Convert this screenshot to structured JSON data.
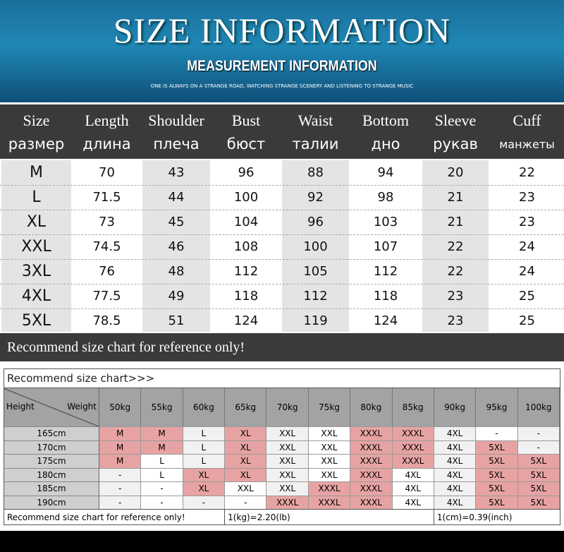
{
  "banner": {
    "title": "SIZE INFORMATION",
    "subtitle": "MEASUREMENT INFORMATION",
    "tagline": "ONE IS ALWAYS ON A STRANGE ROAD, WATCHING STRANGE SCENERY AND LISTENING TO STRANGE MUSIC"
  },
  "size_table": {
    "headers": [
      [
        "Size",
        "размер"
      ],
      [
        "Length",
        "длина"
      ],
      [
        "Shoulder",
        "плеча"
      ],
      [
        "Bust",
        "бюст"
      ],
      [
        "Waist",
        "талии"
      ],
      [
        "Bottom",
        "дно"
      ],
      [
        "Sleeve",
        "рукав"
      ],
      [
        "Cuff",
        "манжеты"
      ]
    ],
    "rows": [
      [
        "M",
        70,
        43,
        96,
        88,
        94,
        20,
        22
      ],
      [
        "L",
        71.5,
        44,
        100,
        92,
        98,
        21,
        23
      ],
      [
        "XL",
        73,
        45,
        104,
        96,
        103,
        21,
        23
      ],
      [
        "XXL",
        74.5,
        46,
        108,
        100,
        107,
        22,
        24
      ],
      [
        "3XL",
        76,
        48,
        112,
        105,
        112,
        22,
        24
      ],
      [
        "4XL",
        77.5,
        49,
        118,
        112,
        118,
        23,
        25
      ],
      [
        "5XL",
        78.5,
        51,
        124,
        119,
        124,
        23,
        25
      ]
    ],
    "note": "Recommend size chart for reference only!"
  },
  "recommend_table": {
    "title": "Recommend size chart>>>",
    "corner": {
      "row": "Height",
      "col": "Weight"
    },
    "weights": [
      "50kg",
      "55kg",
      "60kg",
      "65kg",
      "70kg",
      "75kg",
      "80kg",
      "85kg",
      "90kg",
      "95kg",
      "100kg"
    ],
    "rows": [
      {
        "height": "165cm",
        "sizes": [
          "M",
          "M",
          "L",
          "XL",
          "XXL",
          "XXL",
          "XXXL",
          "XXXL",
          "4XL",
          "-",
          "-"
        ]
      },
      {
        "height": "170cm",
        "sizes": [
          "M",
          "M",
          "L",
          "XL",
          "XXL",
          "XXL",
          "XXXL",
          "XXXL",
          "4XL",
          "5XL",
          "-"
        ]
      },
      {
        "height": "175cm",
        "sizes": [
          "M",
          "L",
          "L",
          "XL",
          "XXL",
          "XXL",
          "XXXL",
          "XXXL",
          "4XL",
          "5XL",
          "5XL"
        ]
      },
      {
        "height": "180cm",
        "sizes": [
          "-",
          "L",
          "XL",
          "XL",
          "XXL",
          "XXL",
          "XXXL",
          "4XL",
          "4XL",
          "5XL",
          "5XL"
        ]
      },
      {
        "height": "185cm",
        "sizes": [
          "-",
          "-",
          "XL",
          "XXL",
          "XXL",
          "XXXL",
          "XXXL",
          "4XL",
          "4XL",
          "5XL",
          "5XL"
        ]
      },
      {
        "height": "190cm",
        "sizes": [
          "-",
          "-",
          "-",
          "-",
          "XXXL",
          "XXXL",
          "XXXL",
          "4XL",
          "4XL",
          "5XL",
          "5XL"
        ]
      }
    ],
    "footer": [
      "Recommend size chart for reference only!",
      "1(kg)=2.20(lb)",
      "1(cm)=0.39(inch)"
    ]
  }
}
